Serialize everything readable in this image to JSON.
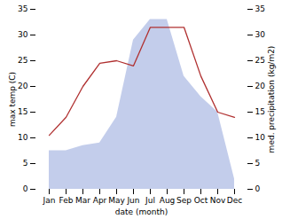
{
  "chart_data": {
    "type": "line",
    "categories": [
      "Jan",
      "Feb",
      "Mar",
      "Apr",
      "May",
      "Jun",
      "Jul",
      "Aug",
      "Sep",
      "Oct",
      "Nov",
      "Dec"
    ],
    "xlabel": "date (month)",
    "ylabel": "max temp (C)",
    "y2label": "med. precipitation (kg/m2)",
    "ylim": [
      0,
      35
    ],
    "yticks": [
      0,
      5,
      10,
      15,
      20,
      25,
      30,
      35
    ],
    "y2lim": [
      0,
      35
    ],
    "y2ticks": [
      0,
      5,
      10,
      15,
      20,
      25,
      30,
      35
    ],
    "series": [
      {
        "type": "area",
        "axis": "y2",
        "color": "#b8c4e8",
        "values": [
          7.5,
          7.5,
          8.5,
          9,
          14,
          29,
          33,
          33,
          22,
          18,
          15,
          2
        ]
      },
      {
        "type": "line",
        "color": "#b03030",
        "values": [
          10.5,
          14,
          20,
          24.5,
          25,
          24,
          31.5,
          31.5,
          31.5,
          22,
          15,
          14
        ]
      }
    ]
  }
}
